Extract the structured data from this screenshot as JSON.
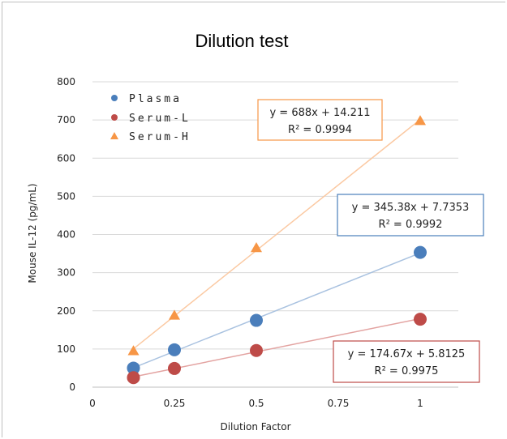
{
  "chart_data": {
    "type": "scatter",
    "title": "Dilution test",
    "xlabel": "Dilution Factor",
    "ylabel": "Mouse IL-12 (pg/mL)",
    "xlim": [
      0,
      1.25
    ],
    "ylim": [
      0,
      800
    ],
    "x_ticks": [
      "0",
      "0.25",
      "0.5",
      "0.75",
      "1"
    ],
    "y_ticks": [
      "0",
      "100",
      "200",
      "300",
      "400",
      "500",
      "600",
      "700",
      "800"
    ],
    "grid": "horizontal",
    "legend_position": "top-left",
    "series": [
      {
        "name": "Plasma",
        "marker": "circle",
        "color": "#4a7ebb",
        "trend_color": "#a9c2e0",
        "x": [
          0.125,
          0.25,
          0.5,
          1
        ],
        "y": [
          50,
          98,
          175,
          353
        ],
        "equation": "y = 345.38x + 7.7353",
        "r2": "R² = 0.9992",
        "box_color": "#4a7ebb"
      },
      {
        "name": "Serum-L",
        "marker": "circle",
        "color": "#be4b48",
        "trend_color": "#e3a3a1",
        "x": [
          0.125,
          0.25,
          0.5,
          1
        ],
        "y": [
          25,
          49,
          96,
          178
        ],
        "equation": "y = 174.67x + 5.8125",
        "r2": "R² = 0.9975",
        "box_color": "#be4b48"
      },
      {
        "name": "Serum-H",
        "marker": "triangle",
        "color": "#f79646",
        "trend_color": "#fbc9a2",
        "x": [
          0.125,
          0.25,
          0.5,
          1
        ],
        "y": [
          95,
          188,
          365,
          698
        ],
        "equation": "y = 688x + 14.211",
        "r2": "R² = 0.9994",
        "box_color": "#f79646"
      }
    ]
  }
}
